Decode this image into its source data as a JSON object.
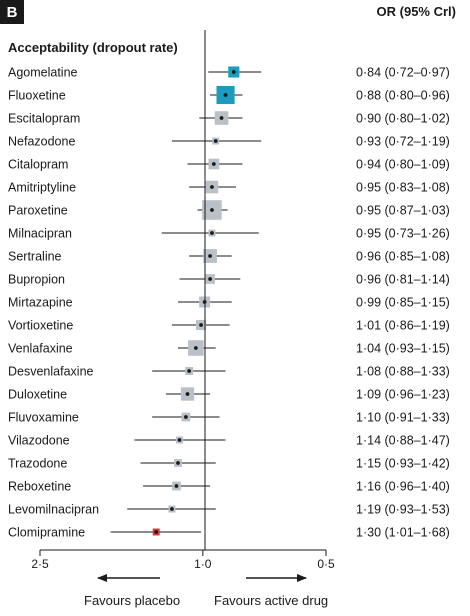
{
  "panel_label": "B",
  "column_header": "OR (95% Crl)",
  "section_title": "Acceptability (dropout rate)",
  "footer": {
    "left_label": "Favours placebo",
    "right_label": "Favours active drug"
  },
  "chart_data": {
    "type": "forest",
    "title": "Acceptability (dropout rate)",
    "axis": {
      "reversed": true,
      "log_scale": true,
      "range": [
        2.5,
        0.5
      ],
      "ticks": [
        2.5,
        1.0,
        0.5
      ],
      "tick_labels": [
        "2·5",
        "1·0",
        "0·5"
      ],
      "reference_line": 1.0
    },
    "colors": {
      "default_box": "#b9c0c8",
      "highlight_box": "#1b9cbf",
      "worse_box": "#d93a3a"
    },
    "rows": [
      {
        "drug": "Agomelatine",
        "or": 0.84,
        "lo": 0.72,
        "hi": 0.97,
        "label": "0·84 (0·72–0·97)",
        "color": "highlight"
      },
      {
        "drug": "Fluoxetine",
        "or": 0.88,
        "lo": 0.8,
        "hi": 0.96,
        "label": "0·88 (0·80–0·96)",
        "color": "highlight"
      },
      {
        "drug": "Escitalopram",
        "or": 0.9,
        "lo": 0.8,
        "hi": 1.02,
        "label": "0·90 (0·80–1·02)",
        "color": "default"
      },
      {
        "drug": "Nefazodone",
        "or": 0.93,
        "lo": 0.72,
        "hi": 1.19,
        "label": "0·93 (0·72–1·19)",
        "color": "default"
      },
      {
        "drug": "Citalopram",
        "or": 0.94,
        "lo": 0.8,
        "hi": 1.09,
        "label": "0·94 (0·80–1·09)",
        "color": "default"
      },
      {
        "drug": "Amitriptyline",
        "or": 0.95,
        "lo": 0.83,
        "hi": 1.08,
        "label": "0·95 (0·83–1·08)",
        "color": "default"
      },
      {
        "drug": "Paroxetine",
        "or": 0.95,
        "lo": 0.87,
        "hi": 1.03,
        "label": "0·95 (0·87–1·03)",
        "color": "default"
      },
      {
        "drug": "Milnacipran",
        "or": 0.95,
        "lo": 0.73,
        "hi": 1.26,
        "label": "0·95 (0·73–1·26)",
        "color": "default"
      },
      {
        "drug": "Sertraline",
        "or": 0.96,
        "lo": 0.85,
        "hi": 1.08,
        "label": "0·96 (0·85–1·08)",
        "color": "default"
      },
      {
        "drug": "Bupropion",
        "or": 0.96,
        "lo": 0.81,
        "hi": 1.14,
        "label": "0·96 (0·81–1·14)",
        "color": "default"
      },
      {
        "drug": "Mirtazapine",
        "or": 0.99,
        "lo": 0.85,
        "hi": 1.15,
        "label": "0·99 (0·85–1·15)",
        "color": "default"
      },
      {
        "drug": "Vortioxetine",
        "or": 1.01,
        "lo": 0.86,
        "hi": 1.19,
        "label": "1·01 (0·86–1·19)",
        "color": "default"
      },
      {
        "drug": "Venlafaxine",
        "or": 1.04,
        "lo": 0.93,
        "hi": 1.15,
        "label": "1·04 (0·93–1·15)",
        "color": "default"
      },
      {
        "drug": "Desvenlafaxine",
        "or": 1.08,
        "lo": 0.88,
        "hi": 1.33,
        "label": "1·08 (0·88–1·33)",
        "color": "default"
      },
      {
        "drug": "Duloxetine",
        "or": 1.09,
        "lo": 0.96,
        "hi": 1.23,
        "label": "1·09 (0·96–1·23)",
        "color": "default"
      },
      {
        "drug": "Fluvoxamine",
        "or": 1.1,
        "lo": 0.91,
        "hi": 1.33,
        "label": "1·10 (0·91–1·33)",
        "color": "default"
      },
      {
        "drug": "Vilazodone",
        "or": 1.14,
        "lo": 0.88,
        "hi": 1.47,
        "label": "1·14 (0·88–1·47)",
        "color": "default"
      },
      {
        "drug": "Trazodone",
        "or": 1.15,
        "lo": 0.93,
        "hi": 1.42,
        "label": "1·15 (0·93–1·42)",
        "color": "default"
      },
      {
        "drug": "Reboxetine",
        "or": 1.16,
        "lo": 0.96,
        "hi": 1.4,
        "label": "1·16 (0·96–1·40)",
        "color": "default"
      },
      {
        "drug": "Levomilnacipran",
        "or": 1.19,
        "lo": 0.93,
        "hi": 1.53,
        "label": "1·19 (0·93–1·53)",
        "color": "default"
      },
      {
        "drug": "Clomipramine",
        "or": 1.3,
        "lo": 1.01,
        "hi": 1.68,
        "label": "1·30 (1·01–1·68)",
        "color": "worse"
      }
    ]
  }
}
